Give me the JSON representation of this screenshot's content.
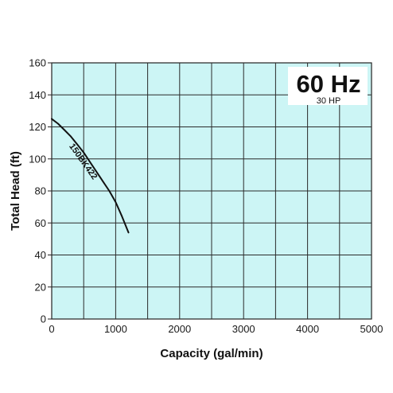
{
  "chart_data": {
    "type": "line",
    "title": "60 Hz",
    "subtitle": "30 HP",
    "xlabel": "Capacity (gal/min)",
    "ylabel": "Total Head (ft)",
    "xlim": [
      0,
      5000
    ],
    "ylim": [
      0,
      160
    ],
    "x_ticks": [
      0,
      1000,
      2000,
      3000,
      4000,
      5000
    ],
    "y_ticks": [
      0,
      20,
      40,
      60,
      80,
      100,
      120,
      140,
      160
    ],
    "grid": true,
    "plot_background": "#ccf5f5",
    "grid_color": "#2a2a2a",
    "series": [
      {
        "name": "150BK422",
        "color": "#111111",
        "points": [
          [
            0,
            125
          ],
          [
            100,
            122
          ],
          [
            200,
            118
          ],
          [
            300,
            114
          ],
          [
            400,
            109
          ],
          [
            500,
            104
          ],
          [
            600,
            98
          ],
          [
            700,
            92
          ],
          [
            800,
            86
          ],
          [
            900,
            80
          ],
          [
            1000,
            73
          ],
          [
            1100,
            64
          ],
          [
            1200,
            54
          ]
        ]
      }
    ]
  }
}
